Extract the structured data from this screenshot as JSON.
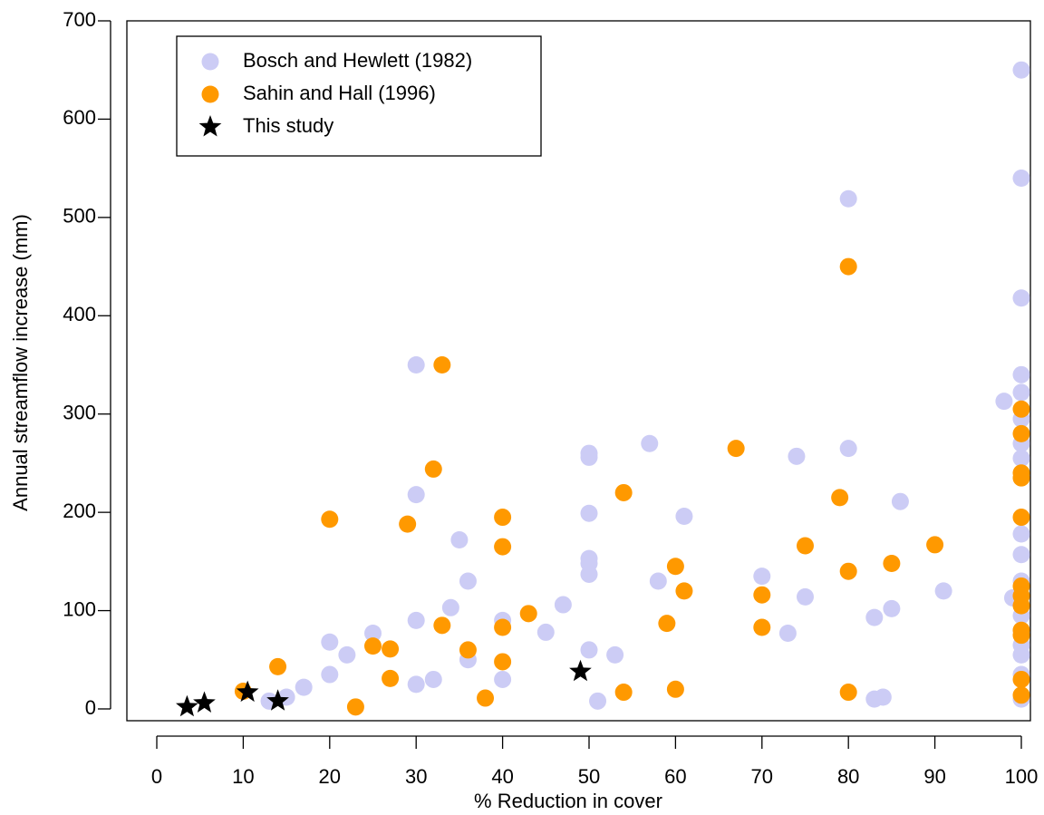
{
  "chart_data": {
    "type": "scatter",
    "x_label": "% Reduction in cover",
    "y_label": "Annual streamflow increase (mm)",
    "xlim": [
      -3.46,
      101.05
    ],
    "ylim": [
      -12,
      700
    ],
    "xticks": [
      0,
      10,
      20,
      30,
      40,
      50,
      60,
      70,
      80,
      90,
      100
    ],
    "yticks": [
      0,
      100,
      200,
      300,
      400,
      500,
      600,
      700
    ],
    "legend": "top-left",
    "series": [
      {
        "name": "Bosch and Hewlett (1982)",
        "color": "#ccccf5",
        "marker": "circle",
        "x": [
          30,
          30,
          35,
          36,
          34,
          30,
          20,
          22,
          25,
          20,
          17,
          15,
          13,
          30,
          32,
          36,
          40,
          40,
          45,
          47,
          50,
          50,
          50,
          50,
          50,
          50,
          50,
          51,
          53,
          57,
          58,
          61,
          70,
          73,
          74,
          75,
          80,
          80,
          83,
          83,
          84,
          85,
          86,
          91,
          98,
          99,
          100,
          100,
          100,
          100,
          100,
          100,
          100,
          100,
          100,
          100,
          100,
          100,
          100,
          100,
          100,
          100,
          100
        ],
        "values": [
          350,
          218,
          172,
          130,
          103,
          90,
          68,
          55,
          77,
          35,
          22,
          12,
          8,
          25,
          30,
          50,
          90,
          30,
          78,
          106,
          260,
          256,
          199,
          153,
          148,
          137,
          60,
          8,
          55,
          270,
          130,
          196,
          135,
          77,
          257,
          114,
          519,
          265,
          93,
          10,
          12,
          102,
          211,
          120,
          313,
          113,
          650,
          540,
          418,
          340,
          322,
          295,
          270,
          255,
          178,
          157,
          130,
          95,
          80,
          65,
          55,
          35,
          10
        ]
      },
      {
        "name": "Sahin and Hall (1996)",
        "color": "#ff9900",
        "marker": "circle",
        "x": [
          10,
          14,
          20,
          23,
          25,
          27,
          27,
          29,
          32,
          33,
          33,
          36,
          38,
          40,
          40,
          40,
          40,
          43,
          54,
          54,
          59,
          60,
          60,
          61,
          67,
          70,
          70,
          75,
          79,
          80,
          80,
          80,
          85,
          90,
          100,
          100,
          100,
          100,
          100,
          100,
          100,
          100,
          100,
          100,
          100,
          100
        ],
        "values": [
          18,
          43,
          193,
          2,
          64,
          61,
          31,
          188,
          244,
          350,
          85,
          60,
          11,
          195,
          165,
          83,
          48,
          97,
          220,
          17,
          87,
          145,
          20,
          120,
          265,
          116,
          83,
          166,
          215,
          450,
          140,
          17,
          148,
          167,
          305,
          280,
          240,
          235,
          195,
          125,
          115,
          105,
          80,
          75,
          30,
          14
        ]
      },
      {
        "name": "This study",
        "color": "#000000",
        "marker": "star",
        "x": [
          3.5,
          5.5,
          10.5,
          14,
          49
        ],
        "values": [
          2,
          6,
          17,
          8,
          38
        ]
      }
    ]
  }
}
